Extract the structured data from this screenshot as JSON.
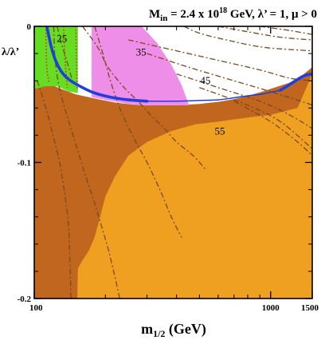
{
  "chart_data": {
    "type": "contour",
    "title": {
      "parts": [
        "M",
        "in",
        " = 2.4 x 10",
        "18",
        " GeV,  λ’ = 1, μ > 0"
      ]
    },
    "xlabel": {
      "main": "m",
      "sub": "1/2",
      "rest": " (GeV)"
    },
    "ylabel": "λ/λ’",
    "x_scale": "log",
    "xlim": [
      100,
      1500
    ],
    "ylim": [
      -0.2,
      0
    ],
    "x_ticks": [
      {
        "value": 100,
        "label": "100"
      },
      {
        "value": 1000,
        "label": "1000"
      },
      {
        "value": 1500,
        "label": "1500"
      }
    ],
    "x_minor_ticks": [
      200,
      300,
      400,
      500,
      600,
      700,
      800,
      900
    ],
    "y_ticks": [
      {
        "value": 0,
        "label": "0"
      },
      {
        "value": -0.1,
        "label": "-0.1"
      },
      {
        "value": -0.2,
        "label": "-0.2"
      }
    ],
    "y_minor_ticks": [
      -0.02,
      -0.04,
      -0.06,
      -0.08,
      -0.12,
      -0.14,
      -0.16,
      -0.18
    ],
    "colors": {
      "orange_region": "#f0a020",
      "brown_region": "#c0661f",
      "pink_region": "#ee8ee8",
      "green_region": "#66dd22",
      "blue_line": "#1f3ee0",
      "contour": "#7a4a1f",
      "red_dotted": "#dd2222"
    },
    "regions": [
      {
        "id": "brown",
        "points": [
          [
            100,
            -0.046
          ],
          [
            115,
            -0.042
          ],
          [
            130,
            -0.046
          ],
          [
            150,
            -0.05
          ],
          [
            180,
            -0.053
          ],
          [
            220,
            -0.056
          ],
          [
            260,
            -0.0575
          ],
          [
            300,
            -0.058
          ],
          [
            400,
            -0.058
          ],
          [
            500,
            -0.057
          ],
          [
            600,
            -0.0555
          ],
          [
            700,
            -0.0535
          ],
          [
            800,
            -0.051
          ],
          [
            900,
            -0.0485
          ],
          [
            1000,
            -0.046
          ],
          [
            1200,
            -0.0415
          ],
          [
            1350,
            -0.0365
          ],
          [
            1500,
            -0.03
          ],
          [
            1500,
            -0.2
          ],
          [
            100,
            -0.2
          ]
        ]
      },
      {
        "id": "orange",
        "points": [
          [
            1500,
            -0.035
          ],
          [
            1300,
            -0.06
          ],
          [
            1000,
            -0.065
          ],
          [
            800,
            -0.067
          ],
          [
            600,
            -0.07
          ],
          [
            480,
            -0.072
          ],
          [
            380,
            -0.077
          ],
          [
            300,
            -0.085
          ],
          [
            250,
            -0.095
          ],
          [
            220,
            -0.11
          ],
          [
            200,
            -0.125
          ],
          [
            190,
            -0.14
          ],
          [
            180,
            -0.155
          ],
          [
            170,
            -0.165
          ],
          [
            160,
            -0.172
          ],
          [
            153,
            -0.178
          ],
          [
            152,
            -0.2
          ],
          [
            1500,
            -0.2
          ]
        ]
      },
      {
        "id": "pink",
        "points": [
          [
            175,
            0
          ],
          [
            285,
            0
          ],
          [
            330,
            -0.012
          ],
          [
            380,
            -0.028
          ],
          [
            420,
            -0.043
          ],
          [
            452,
            -0.058
          ],
          [
            380,
            -0.058
          ],
          [
            300,
            -0.058
          ],
          [
            250,
            -0.057
          ],
          [
            200,
            -0.054
          ],
          [
            175,
            -0.052
          ]
        ]
      },
      {
        "id": "green",
        "points": [
          [
            100,
            0
          ],
          [
            153,
            0
          ],
          [
            153,
            -0.049
          ],
          [
            140,
            -0.048
          ],
          [
            125,
            -0.044
          ],
          [
            112,
            -0.044
          ],
          [
            100,
            -0.046
          ]
        ]
      }
    ],
    "blue_boundary": {
      "thick_segments": [
        [
          [
            113,
            0
          ],
          [
            118,
            -0.015
          ],
          [
            123,
            -0.025
          ],
          [
            130,
            -0.033
          ],
          [
            140,
            -0.039
          ],
          [
            160,
            -0.045
          ],
          [
            180,
            -0.049
          ],
          [
            210,
            -0.052
          ],
          [
            250,
            -0.054
          ],
          [
            300,
            -0.055
          ]
        ],
        [
          [
            1100,
            -0.047
          ],
          [
            1200,
            -0.043
          ],
          [
            1300,
            -0.039
          ],
          [
            1400,
            -0.036
          ],
          [
            1500,
            -0.035
          ]
        ]
      ],
      "thin_segment": [
        [
          300,
          -0.055
        ],
        [
          400,
          -0.055
        ],
        [
          500,
          -0.0545
        ],
        [
          600,
          -0.054
        ],
        [
          700,
          -0.0525
        ],
        [
          800,
          -0.051
        ],
        [
          900,
          -0.05
        ],
        [
          1000,
          -0.0485
        ],
        [
          1100,
          -0.047
        ]
      ]
    },
    "contours": [
      [
        [
          103,
          -0.04
        ],
        [
          112,
          -0.06
        ],
        [
          120,
          -0.08
        ],
        [
          128,
          -0.1
        ],
        [
          135,
          -0.125
        ],
        [
          140,
          -0.15
        ],
        [
          143,
          -0.2
        ]
      ],
      [
        [
          121,
          0
        ],
        [
          122,
          -0.02
        ],
        [
          126,
          -0.04
        ],
        [
          132,
          -0.055
        ],
        [
          140,
          -0.07
        ],
        [
          152,
          -0.09
        ],
        [
          165,
          -0.11
        ],
        [
          180,
          -0.13
        ],
        [
          195,
          -0.15
        ],
        [
          210,
          -0.17
        ],
        [
          230,
          -0.2
        ]
      ],
      [
        [
          180,
          0
        ],
        [
          195,
          -0.02
        ],
        [
          210,
          -0.04
        ],
        [
          230,
          -0.06
        ],
        [
          260,
          -0.08
        ],
        [
          300,
          -0.1
        ],
        [
          340,
          -0.12
        ],
        [
          380,
          -0.14
        ],
        [
          420,
          -0.155
        ]
      ],
      [
        [
          160,
          0
        ],
        [
          185,
          -0.015
        ],
        [
          205,
          -0.03
        ],
        [
          240,
          -0.045
        ],
        [
          275,
          -0.055
        ],
        [
          310,
          -0.065
        ],
        [
          355,
          -0.075
        ],
        [
          400,
          -0.085
        ],
        [
          470,
          -0.095
        ],
        [
          530,
          -0.105
        ]
      ],
      [
        [
          250,
          -0.01
        ],
        [
          400,
          -0.018
        ],
        [
          600,
          -0.025
        ],
        [
          900,
          -0.032
        ],
        [
          1200,
          -0.038
        ],
        [
          1500,
          -0.04
        ]
      ],
      [
        [
          300,
          -0.02
        ],
        [
          450,
          -0.03
        ],
        [
          700,
          -0.04
        ],
        [
          1000,
          -0.048
        ],
        [
          1400,
          -0.056
        ],
        [
          1500,
          -0.058
        ]
      ],
      [
        [
          400,
          -0.035
        ],
        [
          600,
          -0.045
        ],
        [
          900,
          -0.055
        ],
        [
          1200,
          -0.065
        ],
        [
          1500,
          -0.075
        ]
      ],
      [
        [
          500,
          -0.045
        ],
        [
          800,
          -0.058
        ],
        [
          1100,
          -0.07
        ],
        [
          1500,
          -0.09
        ]
      ],
      [
        [
          700,
          -0.055
        ],
        [
          1000,
          -0.07
        ],
        [
          1300,
          -0.085
        ],
        [
          1500,
          -0.095
        ]
      ],
      [
        [
          430,
          0
        ],
        [
          500,
          -0.005
        ],
        [
          650,
          -0.01
        ],
        [
          900,
          -0.015
        ],
        [
          1200,
          -0.017
        ],
        [
          1500,
          -0.018
        ]
      ],
      [
        [
          600,
          0
        ],
        [
          800,
          -0.004
        ],
        [
          1100,
          -0.008
        ],
        [
          1500,
          -0.01
        ]
      ],
      [
        [
          900,
          0
        ],
        [
          1200,
          -0.003
        ],
        [
          1500,
          -0.006
        ]
      ],
      [
        [
          125,
          0
        ],
        [
          130,
          -0.012
        ],
        [
          137,
          -0.025
        ],
        [
          145,
          -0.04
        ]
      ]
    ],
    "red_dotted": [
      [
        [
          112,
          0
        ],
        [
          113,
          -0.03
        ],
        [
          116,
          -0.042
        ]
      ],
      [
        [
          133,
          0
        ],
        [
          135,
          -0.025
        ],
        [
          138,
          -0.045
        ]
      ],
      [
        [
          150,
          0
        ],
        [
          151,
          -0.03
        ],
        [
          152,
          -0.046
        ]
      ]
    ],
    "contour_labels": [
      {
        "text": "25",
        "x": 131,
        "y": -0.009
      },
      {
        "text": "35",
        "x": 283,
        "y": -0.019
      },
      {
        "text": "45",
        "x": 530,
        "y": -0.04
      },
      {
        "text": "55",
        "x": 610,
        "y": -0.077
      }
    ]
  }
}
